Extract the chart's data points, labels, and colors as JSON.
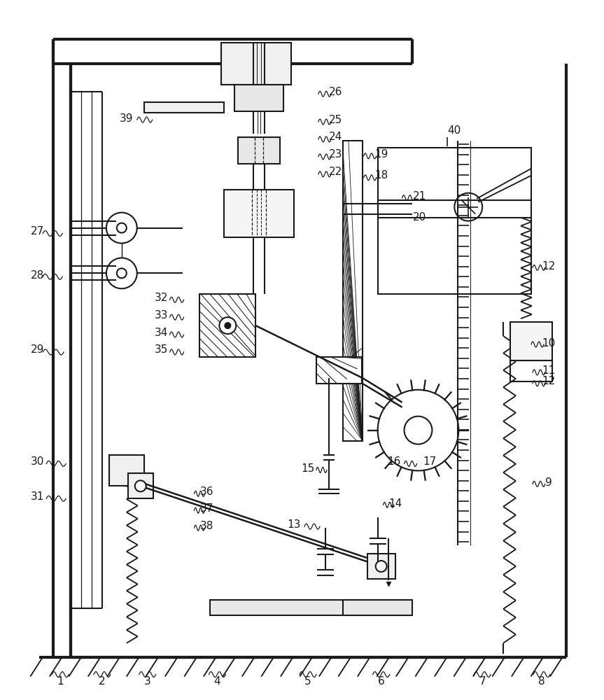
{
  "bg_color": "#ffffff",
  "lc": "#1a1a1a",
  "lw": 1.5,
  "fig_w": 8.63,
  "fig_h": 10.0
}
